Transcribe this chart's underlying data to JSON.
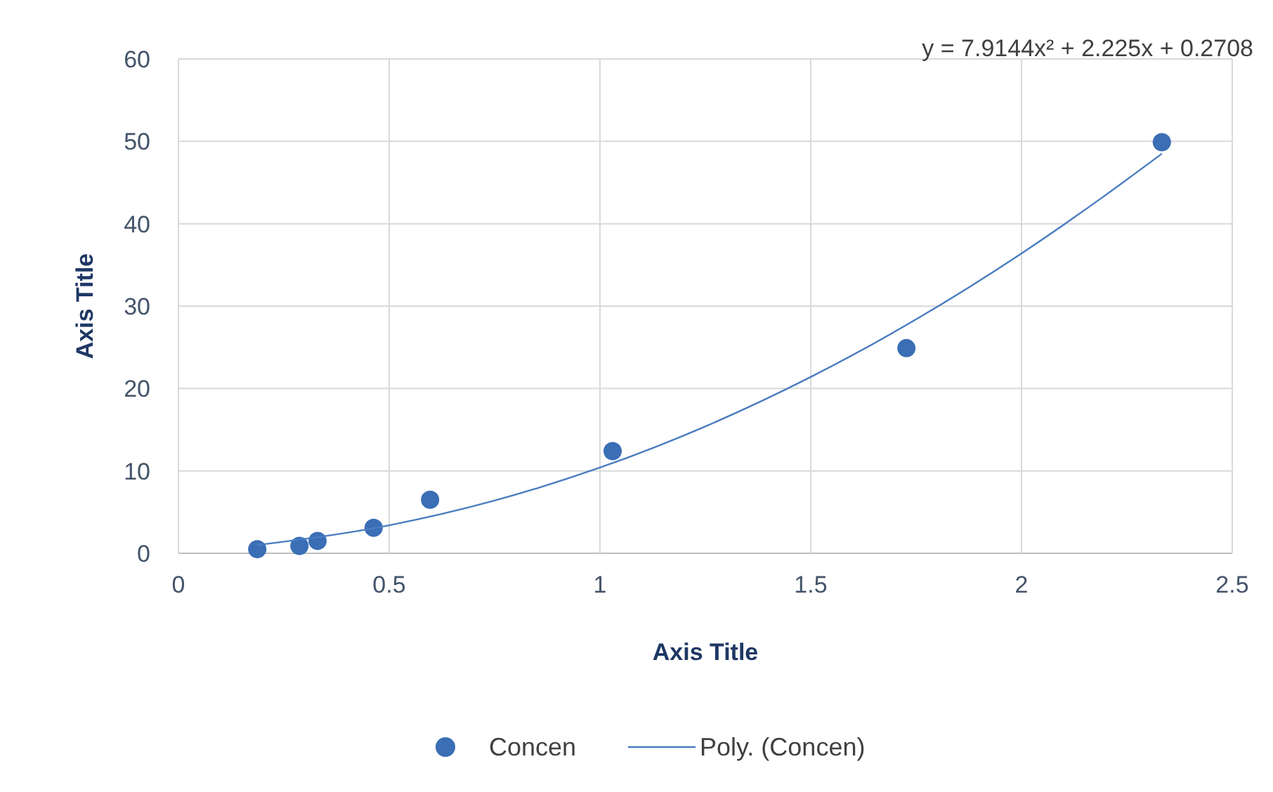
{
  "chart_data": {
    "type": "scatter",
    "xlabel": "Axis Title",
    "ylabel": "Axis Title",
    "annotations": [
      "y = 7.9144x² + 2.225x + 0.2708"
    ],
    "xlim": [
      0,
      2.5
    ],
    "ylim": [
      0,
      60
    ],
    "xticks": [
      0,
      0.5,
      1,
      1.5,
      2,
      2.5
    ],
    "yticks": [
      0,
      10,
      20,
      30,
      40,
      50,
      60
    ],
    "grid": true,
    "legend": "bottom",
    "marker": "circle",
    "series": [
      {
        "name": "Concen",
        "color": "#3a6eb5",
        "x": [
          0.187,
          0.287,
          0.33,
          0.463,
          0.597,
          1.03,
          1.727,
          2.333
        ],
        "values": [
          0.5,
          0.9,
          1.5,
          3.1,
          6.5,
          12.4,
          24.9,
          49.9
        ]
      },
      {
        "name": "Poly. (Concen)",
        "type": "line",
        "marker": "none",
        "line_style": "solid",
        "color": "#4a7cc0",
        "x": [
          0.187,
          0.5,
          0.75,
          1,
          1.25,
          1.5,
          1.75,
          2,
          2.2,
          2.333
        ],
        "values": [
          1,
          3.4,
          6.4,
          10.4,
          15.4,
          21.4,
          28.4,
          36.4,
          43.5,
          48.5
        ]
      }
    ]
  }
}
